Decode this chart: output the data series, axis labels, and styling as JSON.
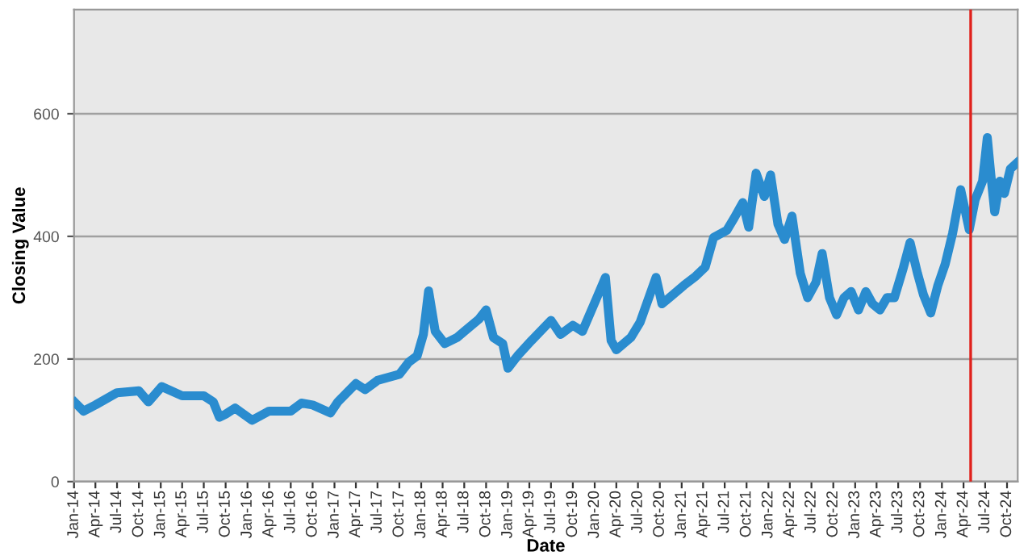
{
  "chart_data": {
    "type": "line",
    "xlabel": "Date",
    "ylabel": "Closing Value",
    "x": [
      "2014-01-05",
      "2014-02-10",
      "2014-04-01",
      "2014-07-01",
      "2014-10-01",
      "2014-11-10",
      "2015-01-05",
      "2015-04-01",
      "2015-07-01",
      "2015-08-10",
      "2015-09-05",
      "2015-10-01",
      "2015-11-10",
      "2016-01-20",
      "2016-04-01",
      "2016-07-01",
      "2016-08-15",
      "2016-10-01",
      "2016-12-15",
      "2017-01-15",
      "2017-04-01",
      "2017-05-10",
      "2017-07-01",
      "2017-10-01",
      "2017-11-10",
      "2017-12-15",
      "2018-01-10",
      "2018-02-01",
      "2018-03-01",
      "2018-04-10",
      "2018-06-01",
      "2018-07-01",
      "2018-09-01",
      "2018-10-01",
      "2018-11-01",
      "2018-12-10",
      "2019-01-01",
      "2019-02-10",
      "2019-04-10",
      "2019-07-01",
      "2019-08-10",
      "2019-10-01",
      "2019-11-10",
      "2020-01-10",
      "2020-02-15",
      "2020-03-10",
      "2020-04-01",
      "2020-06-01",
      "2020-07-10",
      "2020-09-15",
      "2020-10-10",
      "2020-11-10",
      "2021-01-10",
      "2021-03-01",
      "2021-04-10",
      "2021-05-15",
      "2021-07-10",
      "2021-08-10",
      "2021-09-15",
      "2021-10-10",
      "2021-11-10",
      "2021-12-15",
      "2022-01-10",
      "2022-02-10",
      "2022-03-10",
      "2022-04-10",
      "2022-05-15",
      "2022-06-15",
      "2022-07-20",
      "2022-08-15",
      "2022-09-15",
      "2022-10-15",
      "2022-11-15",
      "2022-12-15",
      "2023-01-15",
      "2023-02-15",
      "2023-03-15",
      "2023-04-15",
      "2023-05-15",
      "2023-06-15",
      "2023-07-20",
      "2023-08-20",
      "2023-09-20",
      "2023-10-15",
      "2023-11-15",
      "2023-12-15",
      "2024-01-15",
      "2024-02-15",
      "2024-03-20",
      "2024-04-25",
      "2024-05-20",
      "2024-06-20",
      "2024-07-10",
      "2024-07-25",
      "2024-08-10",
      "2024-09-01",
      "2024-09-20",
      "2024-10-15",
      "2024-11-12"
    ],
    "series": [
      {
        "color": "#2a8ccf",
        "values": [
          129,
          115,
          125,
          145,
          148,
          130,
          155,
          140,
          140,
          130,
          105,
          110,
          120,
          100,
          115,
          115,
          128,
          125,
          112,
          130,
          160,
          150,
          165,
          175,
          195,
          205,
          240,
          311,
          245,
          225,
          235,
          245,
          265,
          280,
          235,
          225,
          185,
          205,
          230,
          263,
          240,
          255,
          245,
          300,
          333,
          230,
          215,
          235,
          260,
          333,
          290,
          300,
          320,
          335,
          350,
          398,
          410,
          430,
          455,
          415,
          503,
          465,
          500,
          420,
          395,
          433,
          340,
          300,
          325,
          372,
          300,
          272,
          300,
          310,
          280,
          310,
          290,
          280,
          300,
          300,
          345,
          390,
          340,
          305,
          275,
          320,
          355,
          405,
          476,
          411,
          460,
          490,
          561,
          500,
          440,
          490,
          470,
          510,
          520
        ]
      }
    ],
    "xlim": [
      "2014-01-01",
      "2024-11-15"
    ],
    "ylim": [
      0,
      770
    ],
    "yticks": [
      0,
      200,
      400,
      600
    ],
    "xticks": [
      {
        "value": "2014-01-01",
        "label": "Jan-14"
      },
      {
        "value": "2014-04-01",
        "label": "Apr-14"
      },
      {
        "value": "2014-07-01",
        "label": "Jul-14"
      },
      {
        "value": "2014-10-01",
        "label": "Oct-14"
      },
      {
        "value": "2015-01-01",
        "label": "Jan-15"
      },
      {
        "value": "2015-04-01",
        "label": "Apr-15"
      },
      {
        "value": "2015-07-01",
        "label": "Jul-15"
      },
      {
        "value": "2015-10-01",
        "label": "Oct-15"
      },
      {
        "value": "2016-01-01",
        "label": "Jan-16"
      },
      {
        "value": "2016-04-01",
        "label": "Apr-16"
      },
      {
        "value": "2016-07-01",
        "label": "Jul-16"
      },
      {
        "value": "2016-10-01",
        "label": "Oct-16"
      },
      {
        "value": "2017-01-01",
        "label": "Jan-17"
      },
      {
        "value": "2017-04-01",
        "label": "Apr-17"
      },
      {
        "value": "2017-07-01",
        "label": "Jul-17"
      },
      {
        "value": "2017-10-01",
        "label": "Oct-17"
      },
      {
        "value": "2018-01-01",
        "label": "Jan-18"
      },
      {
        "value": "2018-04-01",
        "label": "Apr-18"
      },
      {
        "value": "2018-07-01",
        "label": "Jul-18"
      },
      {
        "value": "2018-10-01",
        "label": "Oct-18"
      },
      {
        "value": "2019-01-01",
        "label": "Jan-19"
      },
      {
        "value": "2019-04-01",
        "label": "Apr-19"
      },
      {
        "value": "2019-07-01",
        "label": "Jul-19"
      },
      {
        "value": "2019-10-01",
        "label": "Oct-19"
      },
      {
        "value": "2020-01-01",
        "label": "Jan-20"
      },
      {
        "value": "2020-04-01",
        "label": "Apr-20"
      },
      {
        "value": "2020-07-01",
        "label": "Jul-20"
      },
      {
        "value": "2020-10-01",
        "label": "Oct-20"
      },
      {
        "value": "2021-01-01",
        "label": "Jan-21"
      },
      {
        "value": "2021-04-01",
        "label": "Apr-21"
      },
      {
        "value": "2021-07-01",
        "label": "Jul-21"
      },
      {
        "value": "2021-10-01",
        "label": "Oct-21"
      },
      {
        "value": "2022-01-01",
        "label": "Jan-22"
      },
      {
        "value": "2022-04-01",
        "label": "Apr-22"
      },
      {
        "value": "2022-07-01",
        "label": "Jul-22"
      },
      {
        "value": "2022-10-01",
        "label": "Oct-22"
      },
      {
        "value": "2023-01-01",
        "label": "Jan-23"
      },
      {
        "value": "2023-04-01",
        "label": "Apr-23"
      },
      {
        "value": "2023-07-01",
        "label": "Jul-23"
      },
      {
        "value": "2023-10-01",
        "label": "Oct-23"
      },
      {
        "value": "2024-01-01",
        "label": "Jan-24"
      },
      {
        "value": "2024-04-01",
        "label": "Apr-24"
      },
      {
        "value": "2024-07-01",
        "label": "Jul-24"
      },
      {
        "value": "2024-10-01",
        "label": "Oct-24"
      }
    ],
    "ref_lines": [
      {
        "axis": "x",
        "value": "2024-05-01",
        "color": "#e0201b"
      }
    ],
    "grid": "y",
    "legend": false,
    "line_style": "solid",
    "marker": "none"
  }
}
